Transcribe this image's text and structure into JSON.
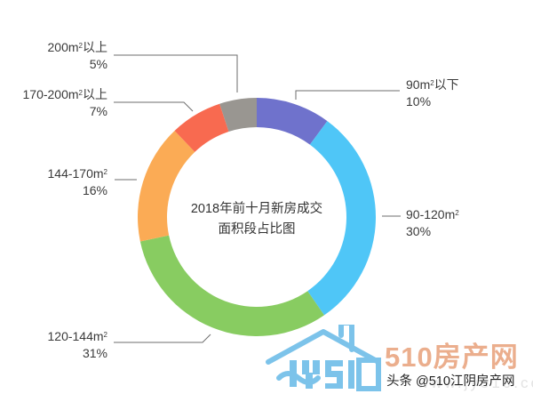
{
  "chart_data": {
    "type": "pie",
    "subtype": "donut",
    "title": "2018年前十月新房成交面积段占比图",
    "title_lines": [
      "2018年前十月新房成交",
      "面积段占比图"
    ],
    "start_angle_deg": 0,
    "direction": "clockwise",
    "categories": [
      "90㎡以下",
      "90-120㎡",
      "120-144㎡",
      "144-170㎡",
      "170-200㎡以上",
      "200㎡以上"
    ],
    "values": [
      10,
      30,
      31,
      16,
      7,
      5
    ],
    "unit": "%",
    "colors": [
      "#6f72cc",
      "#4fc6f7",
      "#88cc61",
      "#fbab55",
      "#f86a50",
      "#999691"
    ],
    "legend_position": "callout labels around ring"
  },
  "labels": [
    {
      "name": "90m",
      "sup": "2",
      "suffix": "以下",
      "pct": "10%"
    },
    {
      "name": "90-120m",
      "sup": "2",
      "suffix": "",
      "pct": "30%"
    },
    {
      "name": "120-144m",
      "sup": "2",
      "suffix": "",
      "pct": "31%"
    },
    {
      "name": "144-170m",
      "sup": "2",
      "suffix": "",
      "pct": "16%"
    },
    {
      "name": "170-200m",
      "sup": "2",
      "suffix": "以上",
      "pct": "7%"
    },
    {
      "name": "200m",
      "sup": "2",
      "suffix": "以上",
      "pct": "5%"
    }
  ],
  "center": {
    "line1": "2018年前十月新房成交",
    "line2": "面积段占比图"
  },
  "watermark": {
    "logo_text": "JYS10",
    "brand": "510房产网",
    "handle": "头条 @510江阴房产网",
    "url": "www.jy510.com",
    "logo_color": "#7cc3ea",
    "brand_color": "#e8a07a"
  }
}
